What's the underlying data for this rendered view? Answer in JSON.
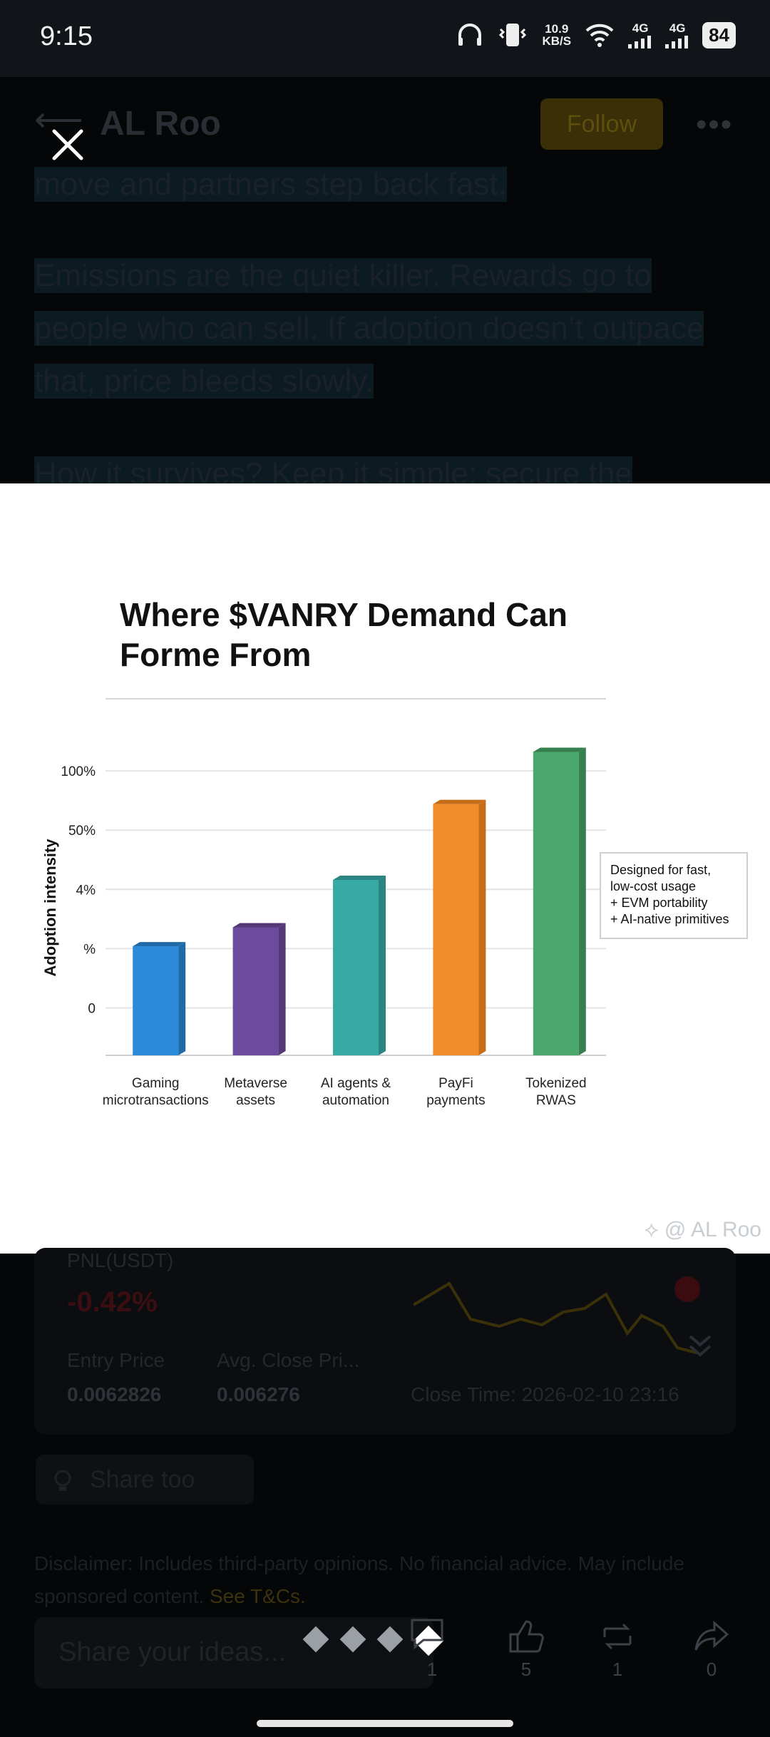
{
  "status_bar": {
    "time": "9:15",
    "net_speed_value": "10.9",
    "net_speed_unit": "KB/S",
    "signal1": "4G",
    "signal2": "4G",
    "battery": "84"
  },
  "header": {
    "author": "AL Roo",
    "follow_label": "Follow",
    "more_label": "•••"
  },
  "post": {
    "paragraph_top": "move and partners step back fast.",
    "paragraph_mid": "Emissions are the quiet killer. Rewards go to people who can sell. If adoption doesn’t outpace that, price bleeds slowly.",
    "paragraph_partial": "How it survives? Keep it simple: secure the"
  },
  "image_viewer": {
    "watermark": "@ AL Roo"
  },
  "chart_data": {
    "type": "bar",
    "title": "Where $VANRY Demand Can Forme From",
    "ylabel": "Adoption intensity",
    "y_tick_labels": [
      "0",
      "%",
      "4%",
      "50%",
      "100%"
    ],
    "categories": [
      "Gaming microtransactions",
      "Metaverse assets",
      "AI agents & automation",
      "PayFi payments",
      "Tokenized RWAS"
    ],
    "category_lines": [
      [
        "Gaming",
        "microtransactions"
      ],
      [
        "Metaverse",
        "assets"
      ],
      [
        "AI agents &",
        "automation"
      ],
      [
        "PayFi",
        "payments"
      ],
      [
        "Tokenized",
        "RWAS"
      ]
    ],
    "values": [
      0.26,
      0.34,
      0.54,
      0.86,
      1.08
    ],
    "ylim": [
      -0.2,
      1.25
    ],
    "colors": [
      "#2b8ad9",
      "#6e4a9e",
      "#38aaa6",
      "#f08c2a",
      "#4aa86c"
    ],
    "side_colors": [
      "#1f6aa8",
      "#543877",
      "#2a8481",
      "#c56d17",
      "#36804f"
    ],
    "annotation": [
      "Designed for fast,",
      "low-cost usage",
      "+ EVM portability",
      "+ AI-native primitives"
    ]
  },
  "trade_card": {
    "pnl_label": "PNL(USDT)",
    "pnl_value": "-0.42%",
    "entry_price_label": "Entry Price",
    "entry_price_value": "0.0062826",
    "avg_close_label": "Avg. Close Pri...",
    "avg_close_value": "0.006276",
    "close_time": "Close Time: 2026-02-10 23:16"
  },
  "share_too": {
    "label": "Share too"
  },
  "disclaimer": {
    "text": "Disclaimer: Includes third-party opinions. No financial advice. May include sponsored content.",
    "link": "See T&Cs."
  },
  "bottom_bar": {
    "input_placeholder": "Share your ideas...",
    "comments_count": "1",
    "likes_count": "5",
    "reposts_count": "1",
    "shares_count": "0"
  },
  "colors": {
    "accent": "#f0b90b",
    "negative": "#f6465d"
  }
}
